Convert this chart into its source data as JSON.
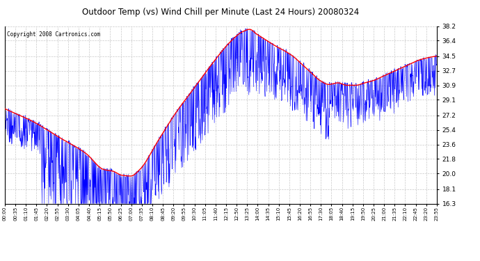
{
  "title": "Outdoor Temp (vs) Wind Chill per Minute (Last 24 Hours) 20080324",
  "copyright_text": "Copyright 2008 Cartronics.com",
  "background_color": "#ffffff",
  "plot_bg_color": "#ffffff",
  "grid_color": "#c8c8c8",
  "blue_color": "#0000ff",
  "red_color": "#ff0000",
  "ylim": [
    16.3,
    38.2
  ],
  "yticks": [
    16.3,
    18.1,
    20.0,
    21.8,
    23.6,
    25.4,
    27.2,
    29.1,
    30.9,
    32.7,
    34.5,
    36.4,
    38.2
  ],
  "xtick_labels": [
    "00:00",
    "00:35",
    "01:10",
    "01:45",
    "02:20",
    "02:55",
    "03:30",
    "04:05",
    "04:40",
    "05:15",
    "05:50",
    "06:25",
    "07:00",
    "07:35",
    "08:10",
    "08:45",
    "09:20",
    "09:55",
    "10:30",
    "11:05",
    "11:40",
    "12:15",
    "12:50",
    "13:25",
    "14:00",
    "14:35",
    "15:10",
    "15:45",
    "16:20",
    "16:55",
    "17:30",
    "18:05",
    "18:40",
    "19:15",
    "19:50",
    "20:25",
    "21:00",
    "21:35",
    "22:10",
    "22:45",
    "23:20",
    "23:55"
  ],
  "n_minutes": 1440,
  "red_keypoints_t": [
    0,
    0.5,
    1.5,
    3.0,
    4.5,
    5.5,
    6.0,
    6.5,
    7.0,
    7.5,
    8.5,
    9.5,
    10.5,
    11.5,
    12.5,
    13.2,
    13.6,
    14.0,
    14.5,
    15.0,
    15.5,
    16.0,
    16.5,
    17.0,
    17.5,
    18.0,
    18.5,
    19.0,
    19.5,
    20.0,
    20.5,
    21.0,
    21.5,
    22.0,
    22.5,
    23.0,
    23.5,
    24.0
  ],
  "red_keypoints_y": [
    28.0,
    27.5,
    26.5,
    24.5,
    22.5,
    20.5,
    20.3,
    19.8,
    19.7,
    20.5,
    24.0,
    27.5,
    30.5,
    33.5,
    36.2,
    37.5,
    37.8,
    37.2,
    36.5,
    35.8,
    35.2,
    34.5,
    33.5,
    32.5,
    31.5,
    31.0,
    31.2,
    30.9,
    30.9,
    31.2,
    31.5,
    32.0,
    32.5,
    33.0,
    33.5,
    34.0,
    34.3,
    34.5
  ]
}
